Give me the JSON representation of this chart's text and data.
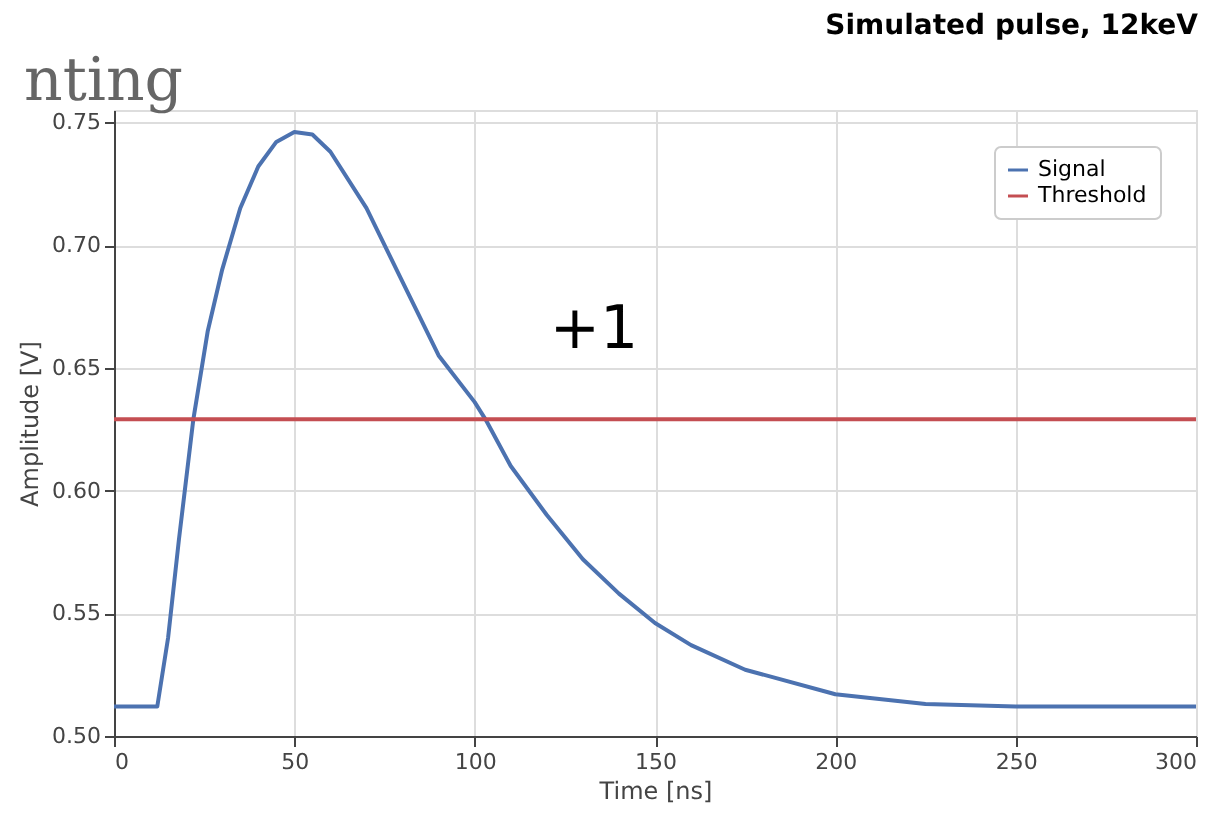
{
  "chart_data": {
    "type": "line",
    "title": "Simulated pulse, 12keV",
    "xlabel": "Time [ns]",
    "ylabel": "Amplitude [V]",
    "annotations": [
      "nting",
      "+1"
    ],
    "series": [
      {
        "name": "Signal",
        "color": "#4c72b0",
        "x": [
          0,
          12,
          15,
          18,
          22,
          26,
          30,
          35,
          40,
          45,
          50,
          55,
          60,
          70,
          80,
          90,
          100,
          103,
          110,
          120,
          130,
          140,
          150,
          160,
          175,
          200,
          225,
          250,
          300
        ],
        "values": [
          0.512,
          0.512,
          0.54,
          0.58,
          0.629,
          0.665,
          0.69,
          0.715,
          0.732,
          0.742,
          0.746,
          0.745,
          0.738,
          0.715,
          0.685,
          0.655,
          0.636,
          0.629,
          0.61,
          0.59,
          0.572,
          0.558,
          0.546,
          0.537,
          0.527,
          0.517,
          0.513,
          0.512,
          0.512
        ]
      },
      {
        "name": "Threshold",
        "color": "#c44e52",
        "x": [
          0,
          300
        ],
        "values": [
          0.629,
          0.629
        ]
      }
    ],
    "xlim": [
      0,
      300
    ],
    "xticks": [
      0,
      50,
      100,
      150,
      200,
      250,
      300
    ],
    "ylim": [
      0.5,
      0.755
    ],
    "yticks": [
      {
        "value": 0.5,
        "label": "0.50"
      },
      0.55,
      {
        "value": 0.6,
        "label": "0.60"
      },
      0.65,
      {
        "value": 0.7,
        "label": "0.70"
      },
      0.75
    ],
    "grid": true,
    "legend": "top right",
    "line_style": "solid"
  }
}
